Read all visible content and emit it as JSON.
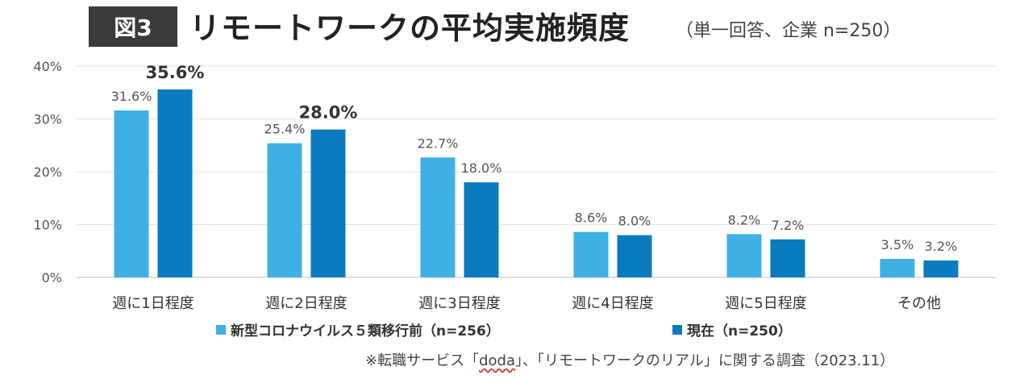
{
  "header": {
    "figure_label": "図3",
    "title": "リモートワークの平均実施頻度",
    "subtitle": "（単一回答、企業 n=250）"
  },
  "chart_data": {
    "type": "bar",
    "title": "リモートワークの平均実施頻度",
    "subtitle": "（単一回答、企業 n=250）",
    "categories": [
      "週に1日程度",
      "週に2日程度",
      "週に3日程度",
      "週に4日程度",
      "週に5日程度",
      "その他"
    ],
    "series": [
      {
        "name": "新型コロナウイルス５類移行前（n=256）",
        "color": "#3fb0e6",
        "values": [
          31.6,
          25.4,
          22.7,
          8.6,
          8.2,
          3.5
        ],
        "labels": [
          "31.6%",
          "25.4%",
          "22.7%",
          "8.6%",
          "8.2%",
          "3.5%"
        ]
      },
      {
        "name": "現在（n=250）",
        "color": "#0a7bbf",
        "values": [
          35.6,
          28.0,
          18.0,
          8.0,
          7.2,
          3.2
        ],
        "labels": [
          "35.6%",
          "28.0%",
          "18.0%",
          "8.0%",
          "7.2%",
          "3.2%"
        ]
      }
    ],
    "highlighted_labels": [
      "35.6%",
      "28.0%"
    ],
    "ylim": [
      0,
      40
    ],
    "yticks": [
      0,
      10,
      20,
      30,
      40
    ],
    "ytick_labels": [
      "0%",
      "10%",
      "20%",
      "30%",
      "40%"
    ],
    "xlabel": "",
    "ylabel": "",
    "grid": true,
    "legend_position": "bottom"
  },
  "legend": [
    {
      "label": "新型コロナウイルス５類移行前（n=256）",
      "color": "#3fb0e6"
    },
    {
      "label": "現在（n=250）",
      "color": "#0a7bbf"
    }
  ],
  "source": {
    "prefix": "※転職サービス「",
    "brand": "doda",
    "suffix": "」、「リモートワークのリアル」に関する調査（2023.11）"
  }
}
